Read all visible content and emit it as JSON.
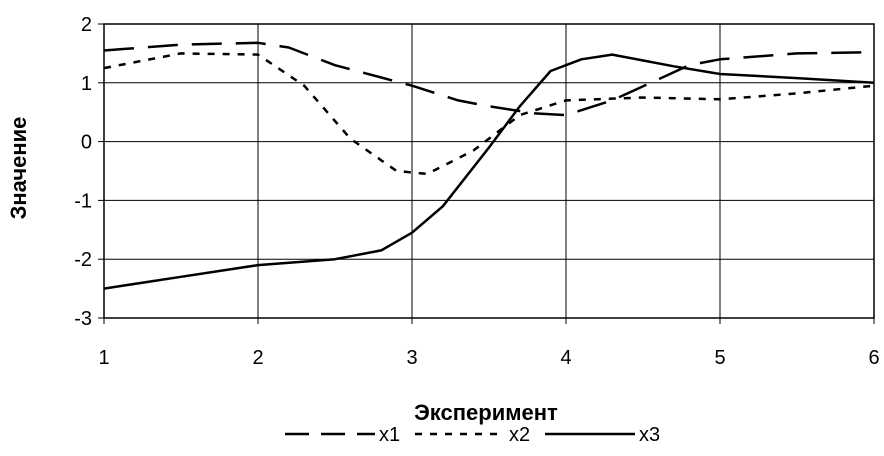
{
  "chart_data": {
    "type": "line",
    "xlabel": "Эксперимент",
    "ylabel": "Значение",
    "x_ticks": [
      "1",
      "2",
      "3",
      "4",
      "5",
      "6"
    ],
    "y_ticks": [
      "2",
      "1",
      "0",
      "-1",
      "-2",
      "-3"
    ],
    "xlim": [
      1,
      6
    ],
    "ylim": [
      -3,
      2
    ],
    "grid": true,
    "legend": "bottom",
    "series": [
      {
        "name": "x1",
        "style": "long-dash",
        "points": [
          [
            1,
            1.55
          ],
          [
            1.5,
            1.65
          ],
          [
            2,
            1.68
          ],
          [
            2.2,
            1.6
          ],
          [
            2.5,
            1.3
          ],
          [
            3,
            0.95
          ],
          [
            3.3,
            0.7
          ],
          [
            3.5,
            0.6
          ],
          [
            3.8,
            0.48
          ],
          [
            4,
            0.45
          ],
          [
            4.3,
            0.7
          ],
          [
            4.8,
            1.3
          ],
          [
            5,
            1.4
          ],
          [
            5.5,
            1.5
          ],
          [
            6,
            1.52
          ]
        ]
      },
      {
        "name": "x2",
        "style": "short-dash",
        "points": [
          [
            1,
            1.25
          ],
          [
            1.5,
            1.5
          ],
          [
            2,
            1.48
          ],
          [
            2.3,
            0.95
          ],
          [
            2.6,
            0.05
          ],
          [
            2.9,
            -0.5
          ],
          [
            3.1,
            -0.55
          ],
          [
            3.4,
            -0.15
          ],
          [
            3.7,
            0.45
          ],
          [
            4,
            0.7
          ],
          [
            4.5,
            0.75
          ],
          [
            5,
            0.72
          ],
          [
            5.5,
            0.82
          ],
          [
            6,
            0.95
          ]
        ]
      },
      {
        "name": "x3",
        "style": "solid",
        "points": [
          [
            1,
            -2.5
          ],
          [
            1.5,
            -2.3
          ],
          [
            2,
            -2.1
          ],
          [
            2.5,
            -2.0
          ],
          [
            2.8,
            -1.85
          ],
          [
            3,
            -1.55
          ],
          [
            3.2,
            -1.1
          ],
          [
            3.5,
            -0.1
          ],
          [
            3.7,
            0.6
          ],
          [
            3.9,
            1.2
          ],
          [
            4.1,
            1.4
          ],
          [
            4.3,
            1.48
          ],
          [
            4.7,
            1.28
          ],
          [
            5,
            1.15
          ],
          [
            5.5,
            1.08
          ],
          [
            6,
            1.0
          ]
        ]
      }
    ],
    "colors": {
      "line": "#000000",
      "grid": "#000000",
      "background": "#ffffff"
    }
  }
}
